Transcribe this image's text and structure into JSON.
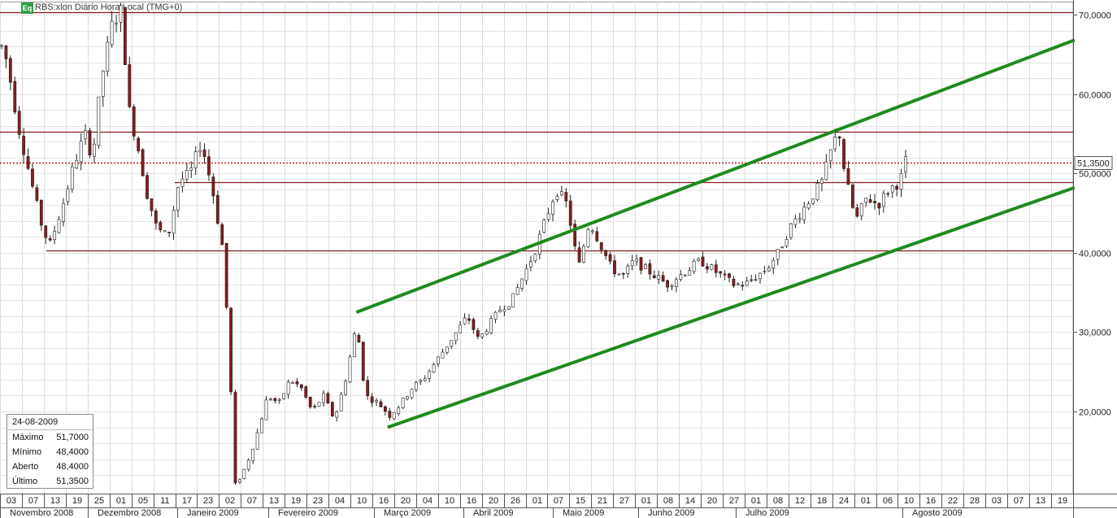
{
  "title": "RBS:xlon Diário Hora Local (TMG+0)",
  "title_badge": "Eq",
  "info_box": {
    "date": "24-08-2009",
    "rows": [
      {
        "label": "Máximo",
        "value": "51,7000"
      },
      {
        "label": "Mínimo",
        "value": "48,4000"
      },
      {
        "label": "Aberto",
        "value": "48,4000"
      },
      {
        "label": "Último",
        "value": "51,3500"
      }
    ]
  },
  "chart_data": {
    "type": "candlestick",
    "y_ticks": [
      20,
      30,
      40,
      50,
      60,
      70
    ],
    "y_tick_labels": [
      "20,0000",
      "30,0000",
      "40,0000",
      "50,0000",
      "60,0000",
      "70,0000"
    ],
    "last_price": 51.35,
    "last_price_label": "51,3500",
    "day_labels": [
      "03",
      "07",
      "13",
      "19",
      "25",
      "01",
      "05",
      "11",
      "17",
      "23",
      "02",
      "07",
      "13",
      "19",
      "23",
      "04",
      "10",
      "16",
      "20",
      "04",
      "10",
      "16",
      "20",
      "26",
      "01",
      "07",
      "15",
      "21",
      "27",
      "01",
      "08",
      "14",
      "20",
      "27",
      "01",
      "08",
      "12",
      "18",
      "24",
      "01",
      "06",
      "10",
      "16",
      "22",
      "28",
      "03",
      "07",
      "13",
      "19"
    ],
    "month_labels": [
      "Novembro 2008",
      "Dezembro 2008",
      "Janeiro 2009",
      "Fevereiro 2009",
      "Março 2009",
      "Abril 2009",
      "Maio 2009",
      "Junho 2009",
      "Julho 2009",
      "Agosto 2009"
    ],
    "horizontal_lines": [
      70.3,
      55.2,
      48.9,
      40.3
    ],
    "trendlines": [
      {
        "from": [
          0.319,
          32.5
        ],
        "to": [
          0.962,
          66.8
        ]
      },
      {
        "from": [
          0.347,
          18.0
        ],
        "to": [
          0.962,
          48.2
        ]
      }
    ],
    "price_path": [
      [
        0.0,
        66
      ],
      [
        0.5,
        64
      ],
      [
        1.5,
        56
      ],
      [
        2.5,
        50
      ],
      [
        3.5,
        44
      ],
      [
        4.3,
        40.8
      ],
      [
        5.5,
        46
      ],
      [
        6.5,
        51
      ],
      [
        7.5,
        55
      ],
      [
        8.2,
        52
      ],
      [
        9,
        62
      ],
      [
        10,
        69
      ],
      [
        10.8,
        70.5
      ],
      [
        11.5,
        58
      ],
      [
        12.5,
        52
      ],
      [
        13,
        48
      ],
      [
        14,
        43
      ],
      [
        15,
        42
      ],
      [
        16,
        49
      ],
      [
        17,
        50
      ],
      [
        18,
        54
      ],
      [
        19,
        48
      ],
      [
        20,
        40
      ],
      [
        20.6,
        25
      ],
      [
        21,
        10.5
      ],
      [
        22,
        13
      ],
      [
        23,
        17
      ],
      [
        24,
        22
      ],
      [
        25,
        21
      ],
      [
        26,
        24
      ],
      [
        27,
        23
      ],
      [
        28,
        20
      ],
      [
        29,
        22
      ],
      [
        30,
        19
      ],
      [
        31,
        24
      ],
      [
        32,
        31
      ],
      [
        32.8,
        22
      ],
      [
        34,
        21
      ],
      [
        35,
        19.5
      ],
      [
        36,
        21
      ],
      [
        37,
        23
      ],
      [
        38,
        24
      ],
      [
        39,
        26
      ],
      [
        40,
        28
      ],
      [
        41,
        30
      ],
      [
        42,
        32
      ],
      [
        43,
        29
      ],
      [
        44,
        31
      ],
      [
        45,
        33
      ],
      [
        46,
        34
      ],
      [
        47,
        37
      ],
      [
        48,
        40
      ],
      [
        49,
        44
      ],
      [
        50,
        48
      ],
      [
        51,
        46
      ],
      [
        52,
        38
      ],
      [
        53,
        44
      ],
      [
        54,
        41
      ],
      [
        55,
        38
      ],
      [
        56,
        37
      ],
      [
        57,
        39
      ],
      [
        58,
        38
      ],
      [
        59,
        37
      ],
      [
        60,
        36
      ],
      [
        61,
        37
      ],
      [
        62,
        38
      ],
      [
        63,
        39
      ],
      [
        64,
        38
      ],
      [
        65,
        37
      ],
      [
        66,
        36
      ],
      [
        67,
        36
      ],
      [
        68,
        37
      ],
      [
        69,
        38
      ],
      [
        70,
        40
      ],
      [
        71,
        43
      ],
      [
        72,
        45
      ],
      [
        73,
        47
      ],
      [
        74,
        49
      ],
      [
        75,
        54
      ],
      [
        75.6,
        55
      ],
      [
        76,
        50
      ],
      [
        77,
        44
      ],
      [
        78,
        47
      ],
      [
        79,
        46
      ],
      [
        80,
        48
      ],
      [
        81,
        49
      ],
      [
        81.5,
        51.5
      ]
    ]
  }
}
